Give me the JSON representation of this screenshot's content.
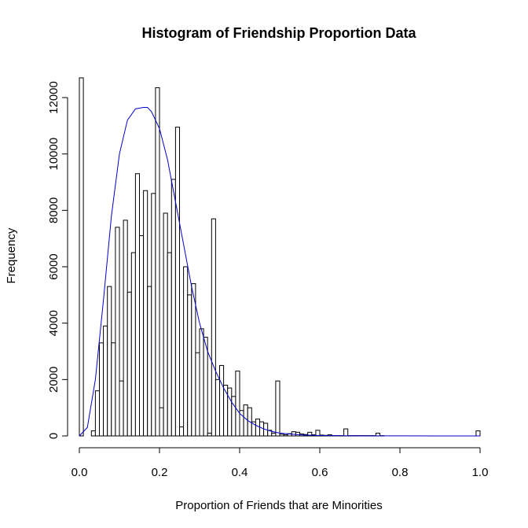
{
  "chart_data": {
    "type": "bar",
    "title": "Histogram of Friendship Proportion Data",
    "xlabel": "Proportion of Friends that are Minorities",
    "ylabel": "Frequency",
    "xlim": [
      0,
      1
    ],
    "ylim": [
      0,
      12700
    ],
    "grid": false,
    "x_ticks": [
      "0.0",
      "0.2",
      "0.4",
      "0.6",
      "0.8",
      "1.0"
    ],
    "y_ticks": [
      "0",
      "2000",
      "4000",
      "6000",
      "8000",
      "10000",
      "12000"
    ],
    "bin_width": 0.01,
    "bins": [
      [
        0.0,
        12700
      ],
      [
        0.01,
        0
      ],
      [
        0.02,
        0
      ],
      [
        0.03,
        180
      ],
      [
        0.04,
        1600
      ],
      [
        0.05,
        3300
      ],
      [
        0.06,
        3900
      ],
      [
        0.07,
        5300
      ],
      [
        0.08,
        3300
      ],
      [
        0.09,
        7400
      ],
      [
        0.1,
        1950
      ],
      [
        0.11,
        7650
      ],
      [
        0.12,
        5100
      ],
      [
        0.13,
        6500
      ],
      [
        0.14,
        9300
      ],
      [
        0.15,
        7100
      ],
      [
        0.16,
        8700
      ],
      [
        0.17,
        5300
      ],
      [
        0.18,
        8600
      ],
      [
        0.19,
        12350
      ],
      [
        0.2,
        1000
      ],
      [
        0.21,
        7900
      ],
      [
        0.22,
        6500
      ],
      [
        0.23,
        9100
      ],
      [
        0.24,
        10950
      ],
      [
        0.25,
        320
      ],
      [
        0.26,
        6000
      ],
      [
        0.27,
        5000
      ],
      [
        0.28,
        5400
      ],
      [
        0.29,
        2950
      ],
      [
        0.3,
        3800
      ],
      [
        0.31,
        3500
      ],
      [
        0.32,
        100
      ],
      [
        0.33,
        7700
      ],
      [
        0.34,
        2000
      ],
      [
        0.35,
        2500
      ],
      [
        0.36,
        1800
      ],
      [
        0.37,
        1700
      ],
      [
        0.38,
        1400
      ],
      [
        0.39,
        2300
      ],
      [
        0.4,
        900
      ],
      [
        0.41,
        1100
      ],
      [
        0.42,
        1000
      ],
      [
        0.43,
        500
      ],
      [
        0.44,
        600
      ],
      [
        0.45,
        500
      ],
      [
        0.46,
        450
      ],
      [
        0.47,
        200
      ],
      [
        0.48,
        100
      ],
      [
        0.49,
        1950
      ],
      [
        0.5,
        60
      ],
      [
        0.51,
        40
      ],
      [
        0.52,
        80
      ],
      [
        0.53,
        150
      ],
      [
        0.54,
        130
      ],
      [
        0.55,
        70
      ],
      [
        0.56,
        50
      ],
      [
        0.57,
        130
      ],
      [
        0.58,
        40
      ],
      [
        0.59,
        200
      ],
      [
        0.6,
        30
      ],
      [
        0.61,
        20
      ],
      [
        0.62,
        40
      ],
      [
        0.63,
        10
      ],
      [
        0.64,
        10
      ],
      [
        0.65,
        10
      ],
      [
        0.66,
        250
      ],
      [
        0.67,
        10
      ],
      [
        0.68,
        10
      ],
      [
        0.69,
        10
      ],
      [
        0.7,
        10
      ],
      [
        0.71,
        10
      ],
      [
        0.72,
        10
      ],
      [
        0.73,
        10
      ],
      [
        0.74,
        100
      ],
      [
        0.75,
        10
      ],
      [
        0.76,
        0
      ],
      [
        0.77,
        0
      ],
      [
        0.78,
        0
      ],
      [
        0.79,
        0
      ],
      [
        0.8,
        0
      ],
      [
        0.81,
        0
      ],
      [
        0.82,
        0
      ],
      [
        0.83,
        0
      ],
      [
        0.84,
        0
      ],
      [
        0.85,
        0
      ],
      [
        0.86,
        0
      ],
      [
        0.87,
        0
      ],
      [
        0.88,
        0
      ],
      [
        0.89,
        0
      ],
      [
        0.9,
        0
      ],
      [
        0.91,
        0
      ],
      [
        0.92,
        0
      ],
      [
        0.93,
        0
      ],
      [
        0.94,
        0
      ],
      [
        0.95,
        0
      ],
      [
        0.96,
        0
      ],
      [
        0.97,
        0
      ],
      [
        0.98,
        0
      ],
      [
        0.99,
        180
      ]
    ],
    "density_curve": {
      "color": "#0000cc",
      "points": [
        [
          0.0,
          0
        ],
        [
          0.02,
          300
        ],
        [
          0.04,
          2000
        ],
        [
          0.06,
          4800
        ],
        [
          0.08,
          7800
        ],
        [
          0.1,
          10000
        ],
        [
          0.12,
          11200
        ],
        [
          0.14,
          11600
        ],
        [
          0.16,
          11650
        ],
        [
          0.17,
          11650
        ],
        [
          0.18,
          11500
        ],
        [
          0.2,
          10900
        ],
        [
          0.22,
          9800
        ],
        [
          0.24,
          8300
        ],
        [
          0.26,
          6800
        ],
        [
          0.28,
          5300
        ],
        [
          0.3,
          4000
        ],
        [
          0.32,
          3000
        ],
        [
          0.34,
          2300
        ],
        [
          0.36,
          1700
        ],
        [
          0.38,
          1200
        ],
        [
          0.4,
          800
        ],
        [
          0.42,
          550
        ],
        [
          0.44,
          380
        ],
        [
          0.46,
          250
        ],
        [
          0.48,
          160
        ],
        [
          0.5,
          100
        ],
        [
          0.55,
          40
        ],
        [
          0.6,
          15
        ],
        [
          0.7,
          5
        ],
        [
          0.8,
          2
        ],
        [
          0.9,
          1
        ],
        [
          1.0,
          0
        ]
      ]
    }
  }
}
